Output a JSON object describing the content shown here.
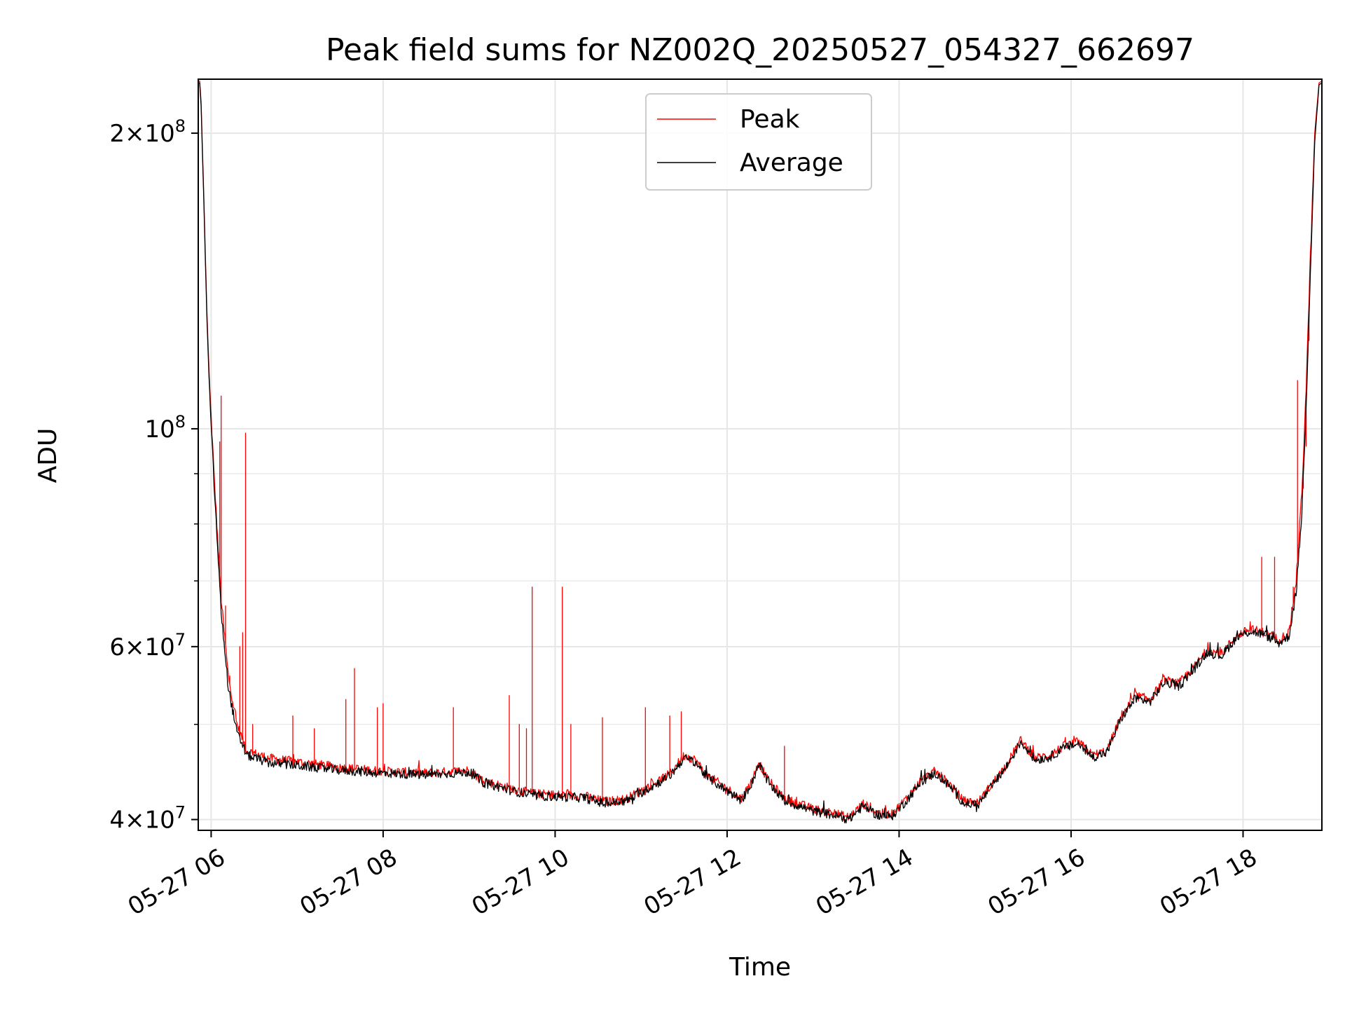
{
  "chart_data": {
    "type": "line",
    "title": "Peak field sums for NZ002Q_20250527_054327_662697",
    "xlabel": "Time",
    "ylabel": "ADU",
    "yscale": "log",
    "ylim": [
      39000000,
      227000000
    ],
    "xlim": [
      "2025-05-27 05:51",
      "2025-05-27 18:55"
    ],
    "grid": true,
    "legend_position": "top-center",
    "x_ticks": [
      {
        "t": "2025-05-27 06:00",
        "label": "05-27 06"
      },
      {
        "t": "2025-05-27 08:00",
        "label": "05-27 08"
      },
      {
        "t": "2025-05-27 10:00",
        "label": "05-27 10"
      },
      {
        "t": "2025-05-27 12:00",
        "label": "05-27 12"
      },
      {
        "t": "2025-05-27 14:00",
        "label": "05-27 14"
      },
      {
        "t": "2025-05-27 16:00",
        "label": "05-27 16"
      },
      {
        "t": "2025-05-27 18:00",
        "label": "05-27 18"
      }
    ],
    "y_major_ticks": [
      {
        "v": 40000000,
        "mant": "4",
        "exp": "7"
      },
      {
        "v": 60000000,
        "mant": "6",
        "exp": "7"
      },
      {
        "v": 100000000,
        "mant": "",
        "exp": "8"
      },
      {
        "v": 200000000,
        "mant": "2",
        "exp": "8"
      }
    ],
    "y_minor_ticks": [
      50000000,
      70000000,
      80000000,
      90000000
    ],
    "series": [
      {
        "name": "Peak",
        "color": "#ff0000",
        "base": [
          [
            "2025-05-27 05:51",
            226000000
          ],
          [
            "2025-05-27 05:52",
            226000000
          ],
          [
            "2025-05-27 05:53",
            215000000
          ],
          [
            "2025-05-27 05:55",
            170000000
          ],
          [
            "2025-05-27 05:57",
            132000000
          ],
          [
            "2025-05-27 05:59",
            110000000
          ],
          [
            "2025-05-27 06:02",
            90000000
          ],
          [
            "2025-05-27 06:07",
            67000000
          ],
          [
            "2025-05-27 06:12",
            56000000
          ],
          [
            "2025-05-27 06:18",
            50000000
          ],
          [
            "2025-05-27 06:25",
            47000000
          ],
          [
            "2025-05-27 06:40",
            46200000
          ],
          [
            "2025-05-27 07:00",
            45800000
          ],
          [
            "2025-05-27 07:30",
            45200000
          ],
          [
            "2025-05-27 08:00",
            44800000
          ],
          [
            "2025-05-27 08:30",
            44600000
          ],
          [
            "2025-05-27 08:50",
            44800000
          ],
          [
            "2025-05-27 09:00",
            44900000
          ],
          [
            "2025-05-27 09:10",
            43800000
          ],
          [
            "2025-05-27 09:30",
            43000000
          ],
          [
            "2025-05-27 09:45",
            42500000
          ],
          [
            "2025-05-27 10:00",
            42400000
          ],
          [
            "2025-05-27 10:20",
            42300000
          ],
          [
            "2025-05-27 10:35",
            41700000
          ],
          [
            "2025-05-27 10:50",
            42000000
          ],
          [
            "2025-05-27 11:05",
            43200000
          ],
          [
            "2025-05-27 11:20",
            44500000
          ],
          [
            "2025-05-27 11:30",
            46500000
          ],
          [
            "2025-05-27 11:38",
            46000000
          ],
          [
            "2025-05-27 11:45",
            44500000
          ],
          [
            "2025-05-27 12:00",
            43000000
          ],
          [
            "2025-05-27 12:10",
            42000000
          ],
          [
            "2025-05-27 12:18",
            44000000
          ],
          [
            "2025-05-27 12:22",
            45800000
          ],
          [
            "2025-05-27 12:28",
            44000000
          ],
          [
            "2025-05-27 12:40",
            42000000
          ],
          [
            "2025-05-27 13:00",
            41000000
          ],
          [
            "2025-05-27 13:15",
            40600000
          ],
          [
            "2025-05-27 13:25",
            40200000
          ],
          [
            "2025-05-27 13:35",
            41500000
          ],
          [
            "2025-05-27 13:45",
            40600000
          ],
          [
            "2025-05-27 13:55",
            40500000
          ],
          [
            "2025-05-27 14:05",
            42000000
          ],
          [
            "2025-05-27 14:15",
            43800000
          ],
          [
            "2025-05-27 14:25",
            44800000
          ],
          [
            "2025-05-27 14:35",
            43500000
          ],
          [
            "2025-05-27 14:45",
            41800000
          ],
          [
            "2025-05-27 14:55",
            41600000
          ],
          [
            "2025-05-27 15:05",
            43500000
          ],
          [
            "2025-05-27 15:15",
            45500000
          ],
          [
            "2025-05-27 15:25",
            48200000
          ],
          [
            "2025-05-27 15:35",
            46200000
          ],
          [
            "2025-05-27 15:45",
            46500000
          ],
          [
            "2025-05-27 15:55",
            47500000
          ],
          [
            "2025-05-27 16:05",
            48000000
          ],
          [
            "2025-05-27 16:15",
            46500000
          ],
          [
            "2025-05-27 16:25",
            47000000
          ],
          [
            "2025-05-27 16:35",
            51000000
          ],
          [
            "2025-05-27 16:45",
            53500000
          ],
          [
            "2025-05-27 16:55",
            53000000
          ],
          [
            "2025-05-27 17:05",
            55500000
          ],
          [
            "2025-05-27 17:15",
            55000000
          ],
          [
            "2025-05-27 17:25",
            57000000
          ],
          [
            "2025-05-27 17:35",
            59500000
          ],
          [
            "2025-05-27 17:45",
            59000000
          ],
          [
            "2025-05-27 17:55",
            61500000
          ],
          [
            "2025-05-27 18:05",
            62500000
          ],
          [
            "2025-05-27 18:15",
            62000000
          ],
          [
            "2025-05-27 18:25",
            61000000
          ],
          [
            "2025-05-27 18:32",
            62000000
          ],
          [
            "2025-05-27 18:37",
            70000000
          ],
          [
            "2025-05-27 18:41",
            86000000
          ],
          [
            "2025-05-27 18:44",
            110000000
          ],
          [
            "2025-05-27 18:47",
            150000000
          ],
          [
            "2025-05-27 18:50",
            200000000
          ],
          [
            "2025-05-27 18:53",
            225000000
          ],
          [
            "2025-05-27 18:55",
            226000000
          ]
        ],
        "spikes": [
          [
            "2025-05-27 06:06",
            97000000
          ],
          [
            "2025-05-27 06:07",
            108000000
          ],
          [
            "2025-05-27 06:10",
            66000000
          ],
          [
            "2025-05-27 06:13",
            56000000
          ],
          [
            "2025-05-27 06:20",
            60000000
          ],
          [
            "2025-05-27 06:22",
            62000000
          ],
          [
            "2025-05-27 06:24",
            99000000
          ],
          [
            "2025-05-27 06:29",
            50000000
          ],
          [
            "2025-05-27 06:57",
            51000000
          ],
          [
            "2025-05-27 07:12",
            49500000
          ],
          [
            "2025-05-27 07:34",
            53000000
          ],
          [
            "2025-05-27 07:40",
            57000000
          ],
          [
            "2025-05-27 07:56",
            52000000
          ],
          [
            "2025-05-27 08:00",
            52500000
          ],
          [
            "2025-05-27 08:49",
            52000000
          ],
          [
            "2025-05-27 09:28",
            53500000
          ],
          [
            "2025-05-27 09:35",
            50000000
          ],
          [
            "2025-05-27 09:40",
            49500000
          ],
          [
            "2025-05-27 09:44",
            69000000
          ],
          [
            "2025-05-27 10:05",
            69000000
          ],
          [
            "2025-05-27 10:11",
            50000000
          ],
          [
            "2025-05-27 10:33",
            50800000
          ],
          [
            "2025-05-27 11:03",
            52000000
          ],
          [
            "2025-05-27 11:20",
            51000000
          ],
          [
            "2025-05-27 11:28",
            51500000
          ],
          [
            "2025-05-27 12:40",
            47500000
          ],
          [
            "2025-05-27 18:13",
            74000000
          ],
          [
            "2025-05-27 18:22",
            74000000
          ],
          [
            "2025-05-27 18:35",
            69000000
          ],
          [
            "2025-05-27 18:38",
            112000000
          ],
          [
            "2025-05-27 18:40",
            82000000
          ],
          [
            "2025-05-27 18:42",
            87000000
          ],
          [
            "2025-05-27 18:44",
            96000000
          ],
          [
            "2025-05-27 18:46",
            123000000
          ]
        ]
      },
      {
        "name": "Average",
        "color": "#000000",
        "base": [
          [
            "2025-05-27 05:51",
            225000000
          ],
          [
            "2025-05-27 05:52",
            225000000
          ],
          [
            "2025-05-27 05:53",
            213000000
          ],
          [
            "2025-05-27 05:55",
            168000000
          ],
          [
            "2025-05-27 05:57",
            130000000
          ],
          [
            "2025-05-27 05:59",
            108000000
          ],
          [
            "2025-05-27 06:02",
            88000000
          ],
          [
            "2025-05-27 06:07",
            65000000
          ],
          [
            "2025-05-27 06:12",
            54500000
          ],
          [
            "2025-05-27 06:18",
            49000000
          ],
          [
            "2025-05-27 06:25",
            46500000
          ],
          [
            "2025-05-27 06:40",
            45700000
          ],
          [
            "2025-05-27 07:00",
            45400000
          ],
          [
            "2025-05-27 07:30",
            44900000
          ],
          [
            "2025-05-27 08:00",
            44600000
          ],
          [
            "2025-05-27 08:30",
            44400000
          ],
          [
            "2025-05-27 08:50",
            44600000
          ],
          [
            "2025-05-27 09:00",
            44700000
          ],
          [
            "2025-05-27 09:10",
            43600000
          ],
          [
            "2025-05-27 09:30",
            42800000
          ],
          [
            "2025-05-27 09:45",
            42300000
          ],
          [
            "2025-05-27 10:00",
            42200000
          ],
          [
            "2025-05-27 10:20",
            42100000
          ],
          [
            "2025-05-27 10:35",
            41500000
          ],
          [
            "2025-05-27 10:50",
            41800000
          ],
          [
            "2025-05-27 11:05",
            43000000
          ],
          [
            "2025-05-27 11:20",
            44300000
          ],
          [
            "2025-05-27 11:30",
            46200000
          ],
          [
            "2025-05-27 11:38",
            45800000
          ],
          [
            "2025-05-27 11:45",
            44300000
          ],
          [
            "2025-05-27 12:00",
            42800000
          ],
          [
            "2025-05-27 12:10",
            41800000
          ],
          [
            "2025-05-27 12:18",
            43800000
          ],
          [
            "2025-05-27 12:22",
            45600000
          ],
          [
            "2025-05-27 12:28",
            43800000
          ],
          [
            "2025-05-27 12:40",
            41800000
          ],
          [
            "2025-05-27 13:00",
            40800000
          ],
          [
            "2025-05-27 13:15",
            40400000
          ],
          [
            "2025-05-27 13:25",
            40000000
          ],
          [
            "2025-05-27 13:35",
            41300000
          ],
          [
            "2025-05-27 13:45",
            40400000
          ],
          [
            "2025-05-27 13:55",
            40300000
          ],
          [
            "2025-05-27 14:05",
            41800000
          ],
          [
            "2025-05-27 14:15",
            43600000
          ],
          [
            "2025-05-27 14:25",
            44600000
          ],
          [
            "2025-05-27 14:35",
            43300000
          ],
          [
            "2025-05-27 14:45",
            41600000
          ],
          [
            "2025-05-27 14:55",
            41400000
          ],
          [
            "2025-05-27 15:05",
            43300000
          ],
          [
            "2025-05-27 15:15",
            45300000
          ],
          [
            "2025-05-27 15:25",
            48000000
          ],
          [
            "2025-05-27 15:35",
            46000000
          ],
          [
            "2025-05-27 15:45",
            46300000
          ],
          [
            "2025-05-27 15:55",
            47300000
          ],
          [
            "2025-05-27 16:05",
            47800000
          ],
          [
            "2025-05-27 16:15",
            46300000
          ],
          [
            "2025-05-27 16:25",
            46800000
          ],
          [
            "2025-05-27 16:35",
            50700000
          ],
          [
            "2025-05-27 16:45",
            53200000
          ],
          [
            "2025-05-27 16:55",
            52700000
          ],
          [
            "2025-05-27 17:05",
            55200000
          ],
          [
            "2025-05-27 17:15",
            54700000
          ],
          [
            "2025-05-27 17:25",
            56700000
          ],
          [
            "2025-05-27 17:35",
            59200000
          ],
          [
            "2025-05-27 17:45",
            58700000
          ],
          [
            "2025-05-27 17:55",
            61200000
          ],
          [
            "2025-05-27 18:05",
            62200000
          ],
          [
            "2025-05-27 18:15",
            61700000
          ],
          [
            "2025-05-27 18:25",
            60500000
          ],
          [
            "2025-05-27 18:32",
            61500000
          ],
          [
            "2025-05-27 18:37",
            68000000
          ],
          [
            "2025-05-27 18:41",
            82000000
          ],
          [
            "2025-05-27 18:44",
            105000000
          ],
          [
            "2025-05-27 18:47",
            145000000
          ],
          [
            "2025-05-27 18:50",
            196000000
          ],
          [
            "2025-05-27 18:53",
            224000000
          ],
          [
            "2025-05-27 18:55",
            225000000
          ]
        ]
      }
    ]
  }
}
